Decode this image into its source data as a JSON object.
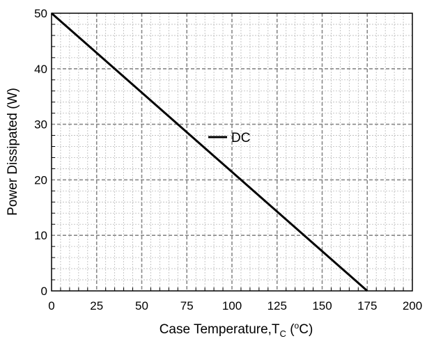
{
  "chart_data": {
    "type": "line",
    "xlabel": "Case Temperature,T",
    "xlabel_sub": "C",
    "xlabel_unit_open": " (",
    "xlabel_unit_sup": "o",
    "xlabel_unit_close": "C)",
    "ylabel": "Power Dissipated (W)",
    "xlim": [
      0,
      200
    ],
    "ylim": [
      0,
      50
    ],
    "x_ticks": [
      0,
      25,
      50,
      75,
      100,
      125,
      150,
      175,
      200
    ],
    "y_ticks": [
      0,
      10,
      20,
      30,
      40,
      50
    ],
    "x_minor_step": 5,
    "y_minor_step": 2,
    "grid": true,
    "legend_placement": "center",
    "series": [
      {
        "name": "DC",
        "color": "#000000",
        "x": [
          0,
          175
        ],
        "y": [
          50,
          0
        ]
      }
    ]
  }
}
